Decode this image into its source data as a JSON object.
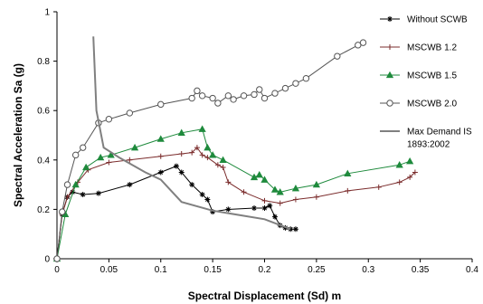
{
  "chart_data": {
    "type": "line",
    "title": "",
    "xlabel": "Spectral Displacement (Sd) m",
    "ylabel": "Spectral Acceleration Sa (g)",
    "xlim": [
      0,
      0.4
    ],
    "ylim": [
      0,
      1
    ],
    "x_ticks": [
      "0",
      "0.05",
      "0.1",
      "0.15",
      "0.2",
      "0.25",
      "0.3",
      "0.35",
      "0.4"
    ],
    "y_ticks": [
      "0",
      "0.2",
      "0.4",
      "0.6",
      "0.8",
      "1"
    ],
    "grid": false,
    "legend_position": "right",
    "series": [
      {
        "name": "Without SCWB",
        "color": "#000000",
        "marker": "star",
        "points": [
          [
            0,
            0
          ],
          [
            0.005,
            0.18
          ],
          [
            0.01,
            0.25
          ],
          [
            0.015,
            0.27
          ],
          [
            0.025,
            0.26
          ],
          [
            0.04,
            0.265
          ],
          [
            0.07,
            0.3
          ],
          [
            0.1,
            0.35
          ],
          [
            0.115,
            0.375
          ],
          [
            0.12,
            0.35
          ],
          [
            0.13,
            0.3
          ],
          [
            0.14,
            0.26
          ],
          [
            0.145,
            0.24
          ],
          [
            0.15,
            0.19
          ],
          [
            0.165,
            0.2
          ],
          [
            0.19,
            0.205
          ],
          [
            0.2,
            0.205
          ],
          [
            0.205,
            0.215
          ],
          [
            0.21,
            0.17
          ],
          [
            0.215,
            0.135
          ],
          [
            0.22,
            0.125
          ],
          [
            0.225,
            0.12
          ],
          [
            0.23,
            0.12
          ]
        ]
      },
      {
        "name": "MSCWB 1.2",
        "color": "#7b2c2c",
        "marker": "plus",
        "points": [
          [
            0,
            0
          ],
          [
            0.005,
            0.18
          ],
          [
            0.01,
            0.25
          ],
          [
            0.02,
            0.31
          ],
          [
            0.03,
            0.36
          ],
          [
            0.05,
            0.39
          ],
          [
            0.07,
            0.4
          ],
          [
            0.1,
            0.415
          ],
          [
            0.12,
            0.425
          ],
          [
            0.13,
            0.43
          ],
          [
            0.135,
            0.45
          ],
          [
            0.14,
            0.42
          ],
          [
            0.145,
            0.41
          ],
          [
            0.155,
            0.38
          ],
          [
            0.16,
            0.37
          ],
          [
            0.165,
            0.31
          ],
          [
            0.18,
            0.27
          ],
          [
            0.2,
            0.235
          ],
          [
            0.215,
            0.225
          ],
          [
            0.23,
            0.24
          ],
          [
            0.25,
            0.25
          ],
          [
            0.28,
            0.275
          ],
          [
            0.31,
            0.29
          ],
          [
            0.33,
            0.31
          ],
          [
            0.34,
            0.33
          ],
          [
            0.345,
            0.35
          ]
        ]
      },
      {
        "name": "MSCWB 1.5",
        "color": "#1e8a3c",
        "marker": "triangle",
        "points": [
          [
            0,
            0
          ],
          [
            0.008,
            0.18
          ],
          [
            0.018,
            0.3
          ],
          [
            0.028,
            0.37
          ],
          [
            0.042,
            0.41
          ],
          [
            0.052,
            0.42
          ],
          [
            0.075,
            0.45
          ],
          [
            0.1,
            0.485
          ],
          [
            0.12,
            0.51
          ],
          [
            0.14,
            0.525
          ],
          [
            0.145,
            0.45
          ],
          [
            0.15,
            0.42
          ],
          [
            0.16,
            0.4
          ],
          [
            0.19,
            0.33
          ],
          [
            0.195,
            0.34
          ],
          [
            0.2,
            0.32
          ],
          [
            0.21,
            0.28
          ],
          [
            0.215,
            0.27
          ],
          [
            0.23,
            0.285
          ],
          [
            0.25,
            0.3
          ],
          [
            0.28,
            0.345
          ],
          [
            0.33,
            0.38
          ],
          [
            0.34,
            0.395
          ]
        ]
      },
      {
        "name": "MSCWB 2.0",
        "color": "#555555",
        "marker": "circle",
        "points": [
          [
            0,
            0
          ],
          [
            0.005,
            0.19
          ],
          [
            0.01,
            0.3
          ],
          [
            0.018,
            0.42
          ],
          [
            0.025,
            0.45
          ],
          [
            0.04,
            0.55
          ],
          [
            0.05,
            0.565
          ],
          [
            0.07,
            0.59
          ],
          [
            0.1,
            0.625
          ],
          [
            0.13,
            0.65
          ],
          [
            0.135,
            0.68
          ],
          [
            0.14,
            0.66
          ],
          [
            0.15,
            0.65
          ],
          [
            0.155,
            0.63
          ],
          [
            0.165,
            0.66
          ],
          [
            0.17,
            0.645
          ],
          [
            0.18,
            0.66
          ],
          [
            0.19,
            0.665
          ],
          [
            0.195,
            0.685
          ],
          [
            0.2,
            0.65
          ],
          [
            0.21,
            0.67
          ],
          [
            0.22,
            0.69
          ],
          [
            0.23,
            0.71
          ],
          [
            0.24,
            0.73
          ],
          [
            0.27,
            0.82
          ],
          [
            0.29,
            0.865
          ],
          [
            0.295,
            0.875
          ]
        ]
      },
      {
        "name": "Max Demand IS 1893:2002",
        "color": "#808080",
        "marker": "none",
        "points": [
          [
            0.035,
            0.9
          ],
          [
            0.038,
            0.6
          ],
          [
            0.045,
            0.45
          ],
          [
            0.06,
            0.41
          ],
          [
            0.085,
            0.35
          ],
          [
            0.1,
            0.32
          ],
          [
            0.12,
            0.23
          ],
          [
            0.15,
            0.195
          ],
          [
            0.2,
            0.16
          ],
          [
            0.225,
            0.12
          ]
        ]
      }
    ]
  }
}
